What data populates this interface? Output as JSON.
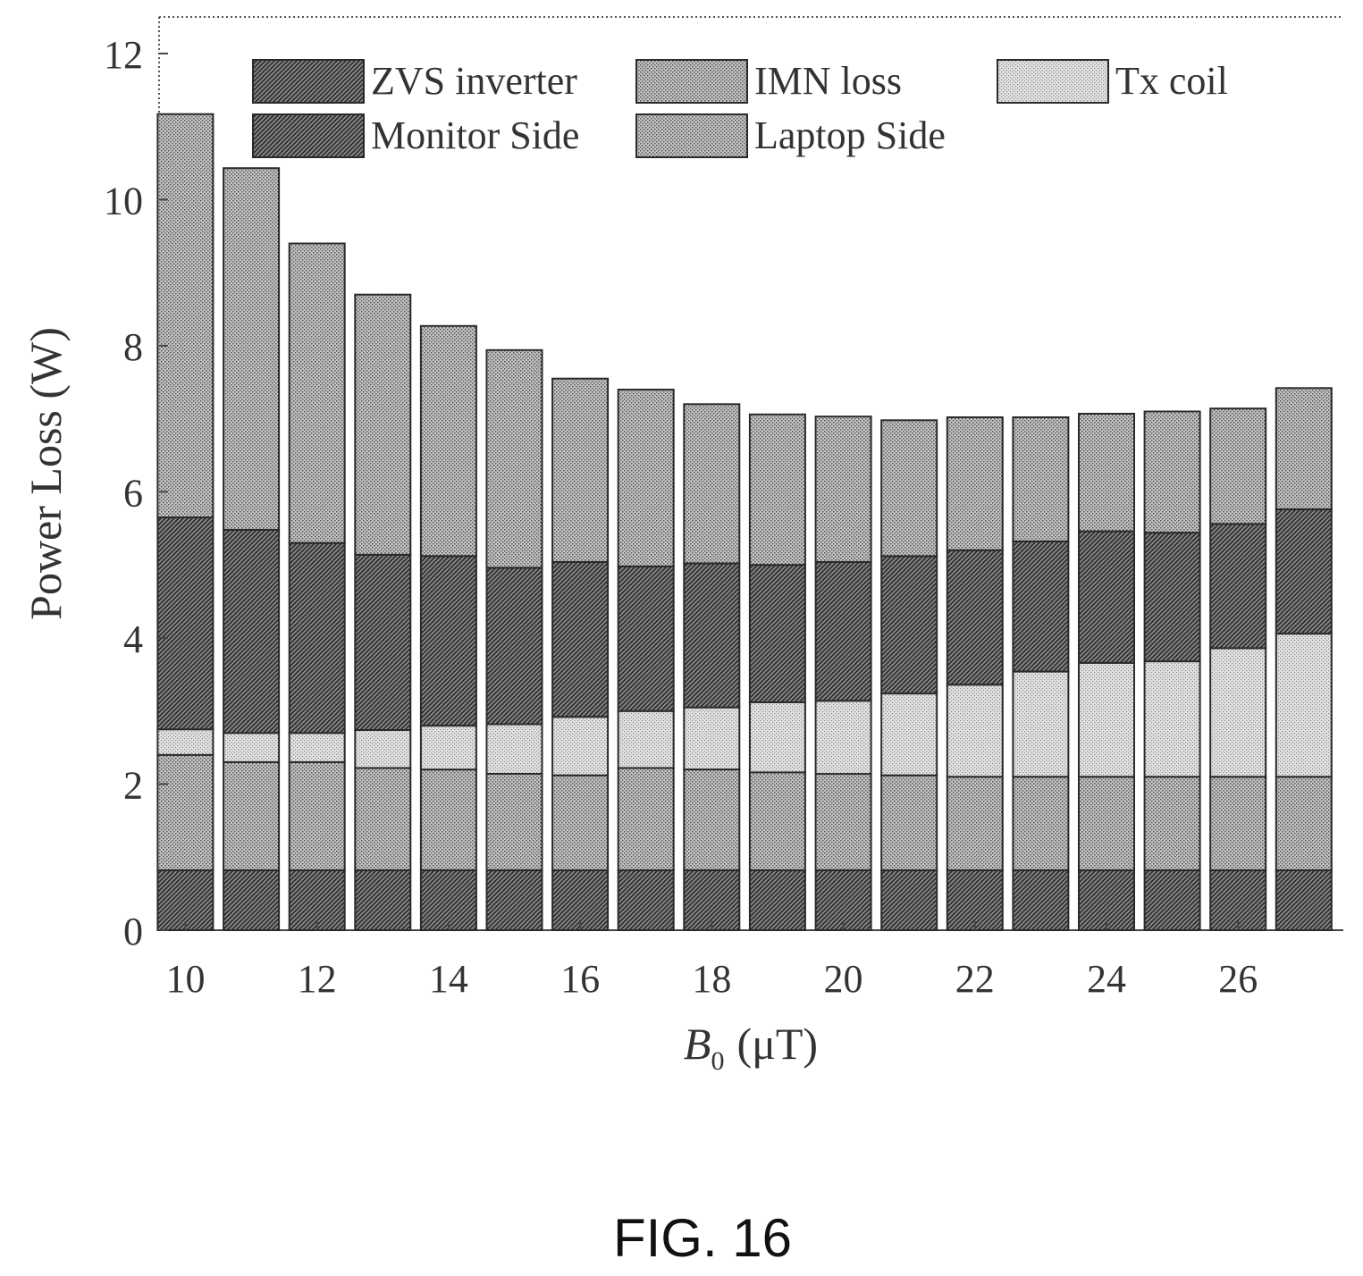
{
  "chart_data": {
    "type": "bar",
    "stacked": true,
    "figure_caption": "FIG. 16",
    "xlabel_var": "B",
    "xlabel_sub": "0",
    "xlabel_unit": "(μT)",
    "ylabel": "Power Loss (W)",
    "x": [
      10,
      11,
      12,
      13,
      14,
      15,
      16,
      17,
      18,
      19,
      20,
      21,
      22,
      23,
      24,
      25,
      26,
      27
    ],
    "x_tick_labels": [
      "10",
      "12",
      "14",
      "16",
      "18",
      "20",
      "22",
      "24",
      "26"
    ],
    "x_tick_values": [
      10,
      12,
      14,
      16,
      18,
      20,
      22,
      24,
      26
    ],
    "y_tick_labels": [
      "0",
      "2",
      "4",
      "6",
      "8",
      "10",
      "12"
    ],
    "y_tick_values": [
      0,
      2,
      4,
      6,
      8,
      10,
      12
    ],
    "xlim": [
      9.6,
      27.6
    ],
    "ylim": [
      0,
      12.5
    ],
    "legend_position": "top",
    "grid": false,
    "series": [
      {
        "name": "ZVS inverter",
        "pattern": "diag-dark",
        "values": [
          0.82,
          0.82,
          0.82,
          0.82,
          0.82,
          0.82,
          0.82,
          0.82,
          0.82,
          0.82,
          0.82,
          0.82,
          0.82,
          0.82,
          0.82,
          0.82,
          0.82,
          0.82
        ]
      },
      {
        "name": "IMN loss",
        "pattern": "dots-medium",
        "values": [
          1.58,
          1.48,
          1.48,
          1.4,
          1.38,
          1.32,
          1.3,
          1.4,
          1.38,
          1.34,
          1.32,
          1.3,
          1.28,
          1.28,
          1.28,
          1.28,
          1.28,
          1.28
        ]
      },
      {
        "name": "Tx coil",
        "pattern": "dots-light",
        "values": [
          0.35,
          0.4,
          0.4,
          0.52,
          0.6,
          0.68,
          0.8,
          0.78,
          0.85,
          0.96,
          1.0,
          1.12,
          1.26,
          1.44,
          1.56,
          1.58,
          1.76,
          1.96
        ]
      },
      {
        "name": "Monitor Side",
        "pattern": "diag-dark",
        "values": [
          2.9,
          2.78,
          2.6,
          2.4,
          2.32,
          2.14,
          2.12,
          1.98,
          1.97,
          1.88,
          1.9,
          1.88,
          1.84,
          1.78,
          1.8,
          1.76,
          1.7,
          1.7
        ]
      },
      {
        "name": "Laptop Side",
        "pattern": "dots-medium",
        "values": [
          5.52,
          4.95,
          4.1,
          3.56,
          3.15,
          2.98,
          2.51,
          2.42,
          2.18,
          2.06,
          1.99,
          1.86,
          1.82,
          1.7,
          1.61,
          1.66,
          1.58,
          1.66
        ]
      }
    ]
  }
}
